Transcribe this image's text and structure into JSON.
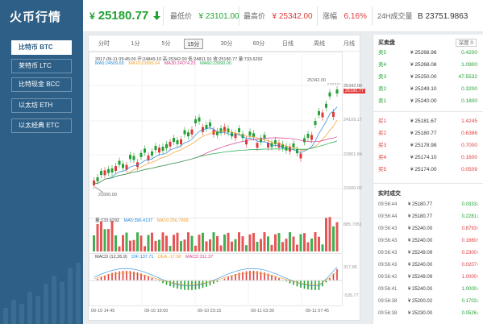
{
  "sidebar": {
    "title": "火币行情",
    "items": [
      {
        "label": "比特币 BTC",
        "active": true
      },
      {
        "label": "莱特币 LTC",
        "active": false
      },
      {
        "label": "比特现金 BCC",
        "active": false
      },
      {
        "label": "以太坊 ETH",
        "active": false
      },
      {
        "label": "以太经典 ETC",
        "active": false
      }
    ]
  },
  "header": {
    "currency_symbol": "¥",
    "last_price": "25180.77",
    "arrow": "down-arrow-icon",
    "low_label": "最低价",
    "low_value": "¥ 23101.00",
    "high_label": "最高价",
    "high_value": "¥ 25342.00",
    "change_label": "涨幅",
    "change_value": "6.16%",
    "volume_label": "24H成交量",
    "volume_value": "B 23751.9863"
  },
  "chart": {
    "timeframes": [
      "分时",
      "1分",
      "5分",
      "15分",
      "30分",
      "60分",
      "日线",
      "周线",
      "月线"
    ],
    "active_timeframe": "15分",
    "info_line": "2017-09-11 09:45:00  开:24849.10  高:25342.00  低:24811.91  收:25180.77  量:733.6292",
    "ma5": "MA5:24509.65",
    "ma10": "MA10:23995.64",
    "ma30": "MA30:24074.23",
    "ma60": "MA60:23990.00",
    "price_axis": [
      "25342.00",
      "24109.17",
      "22861.84",
      "21600.00"
    ],
    "current_price_tag": "25180.77",
    "high_marker": "25342.00",
    "low_marker": "21600.00",
    "vol_line": "量:733.6292",
    "vol_ma5": "MA5:396.4137",
    "vol_ma10": "MA10:256.7858",
    "vol_axis_top": "885.7951",
    "macd_params": "MACD (12,26,9)",
    "dif": "DIF:137.71",
    "dea": "DEA:-17.98",
    "macd_val": "MACD:311.37",
    "macd_axis_top": "317.86",
    "macd_axis_bottom": "-535.77",
    "x_ticks": [
      "09-10 14:45",
      "09-10 19:00",
      "09-10 23:15",
      "09-11 03:30",
      "09-11 07:45"
    ]
  },
  "orderbook": {
    "title": "买卖盘",
    "depth_label": "深度 0",
    "asks": [
      {
        "label": "卖5",
        "price": "¥ 25268.98",
        "amount": "0.4200"
      },
      {
        "label": "卖4",
        "price": "¥ 25268.08",
        "amount": "1.0900"
      },
      {
        "label": "卖3",
        "price": "¥ 25250.00",
        "amount": "47.5532"
      },
      {
        "label": "卖2",
        "price": "¥ 25249.10",
        "amount": "0.3200"
      },
      {
        "label": "卖1",
        "price": "¥ 25240.00",
        "amount": "0.1800"
      }
    ],
    "bids": [
      {
        "label": "买1",
        "price": "¥ 25181.67",
        "amount": "1.4245"
      },
      {
        "label": "买2",
        "price": "¥ 25180.77",
        "amount": "0.6386"
      },
      {
        "label": "买3",
        "price": "¥ 25178.98",
        "amount": "0.7000"
      },
      {
        "label": "买4",
        "price": "¥ 25174.10",
        "amount": "0.1600"
      },
      {
        "label": "买5",
        "price": "¥ 25174.00",
        "amount": "0.0509"
      }
    ]
  },
  "trades": {
    "title": "实时成交",
    "rows": [
      {
        "time": "09:56:44",
        "price": "¥ 25180.77",
        "amount": "0.0333↓",
        "side": "sell"
      },
      {
        "time": "09:56:44",
        "price": "¥ 25180.77",
        "amount": "0.2281↓",
        "side": "sell"
      },
      {
        "time": "09:56:43",
        "price": "¥ 25240.00",
        "amount": "0.8793↑",
        "side": "buy"
      },
      {
        "time": "09:56:43",
        "price": "¥ 25240.00",
        "amount": "0.1660↑",
        "side": "buy"
      },
      {
        "time": "09:56:43",
        "price": "¥ 25249.09",
        "amount": "0.2300↑",
        "side": "buy"
      },
      {
        "time": "09:56:43",
        "price": "¥ 25240.00",
        "amount": "0.0207↑",
        "side": "buy"
      },
      {
        "time": "09:56:42",
        "price": "¥ 25249.09",
        "amount": "1.0000↑",
        "side": "buy"
      },
      {
        "time": "09:56:41",
        "price": "¥ 25240.00",
        "amount": "1.0000↓",
        "side": "sell"
      },
      {
        "time": "09:56:38",
        "price": "¥ 25200.02",
        "amount": "0.1703↓",
        "side": "sell"
      },
      {
        "time": "09:56:38",
        "price": "¥ 25230.00",
        "amount": "0.0526↓",
        "side": "sell"
      }
    ]
  },
  "colors": {
    "up": "#e03a3a",
    "down": "#22a132",
    "sidebar": "#2e5f86"
  }
}
